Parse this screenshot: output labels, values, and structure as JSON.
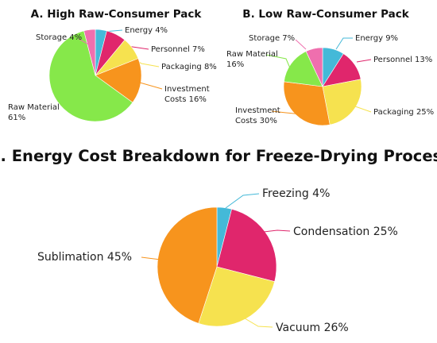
{
  "chart_data": [
    {
      "type": "pie",
      "title": "A. High Raw-Consumer Pack",
      "slices": [
        {
          "label": "Energy",
          "value": 4,
          "text": "Energy 4%",
          "color": "#44b9d8"
        },
        {
          "label": "Personnel",
          "value": 7,
          "text": "Personnel 7%",
          "color": "#e0266c"
        },
        {
          "label": "Packaging",
          "value": 8,
          "text": "Packaging 8%",
          "color": "#f6e24f"
        },
        {
          "label": "Investment Costs",
          "value": 16,
          "text": [
            "Investment",
            "Costs 16%"
          ],
          "color": "#f7941d"
        },
        {
          "label": "Raw Material",
          "value": 61,
          "text": [
            "Raw Material",
            "61%"
          ],
          "color": "#86e84a"
        },
        {
          "label": "Storage",
          "value": 4,
          "text": "Storage 4%",
          "color": "#ef6fae"
        }
      ]
    },
    {
      "type": "pie",
      "title": "B. Low Raw-Consumer Pack",
      "slices": [
        {
          "label": "Energy",
          "value": 9,
          "text": "Energy 9%",
          "color": "#44b9d8"
        },
        {
          "label": "Personnel",
          "value": 13,
          "text": "Personnel 13%",
          "color": "#e0266c"
        },
        {
          "label": "Packaging",
          "value": 25,
          "text": "Packaging 25%",
          "color": "#f6e24f"
        },
        {
          "label": "Investment Costs",
          "value": 30,
          "text": [
            "Investment",
            "Costs 30%"
          ],
          "color": "#f7941d"
        },
        {
          "label": "Raw Material",
          "value": 16,
          "text": [
            "Raw Material",
            "16%"
          ],
          "color": "#86e84a"
        },
        {
          "label": "Storage",
          "value": 7,
          "text": "Storage 7%",
          "color": "#ef6fae"
        }
      ]
    },
    {
      "type": "pie",
      "title": "C. Energy Cost Breakdown for Freeze-Drying Process",
      "slices": [
        {
          "label": "Freezing",
          "value": 4,
          "text": "Freezing 4%",
          "color": "#44b9d8"
        },
        {
          "label": "Condensation",
          "value": 25,
          "text": "Condensation 25%",
          "color": "#e0266c"
        },
        {
          "label": "Vacuum",
          "value": 26,
          "text": "Vacuum 26%",
          "color": "#f6e24f"
        },
        {
          "label": "Sublimation",
          "value": 45,
          "text": "Sublimation 45%",
          "color": "#f7941d"
        }
      ]
    }
  ]
}
